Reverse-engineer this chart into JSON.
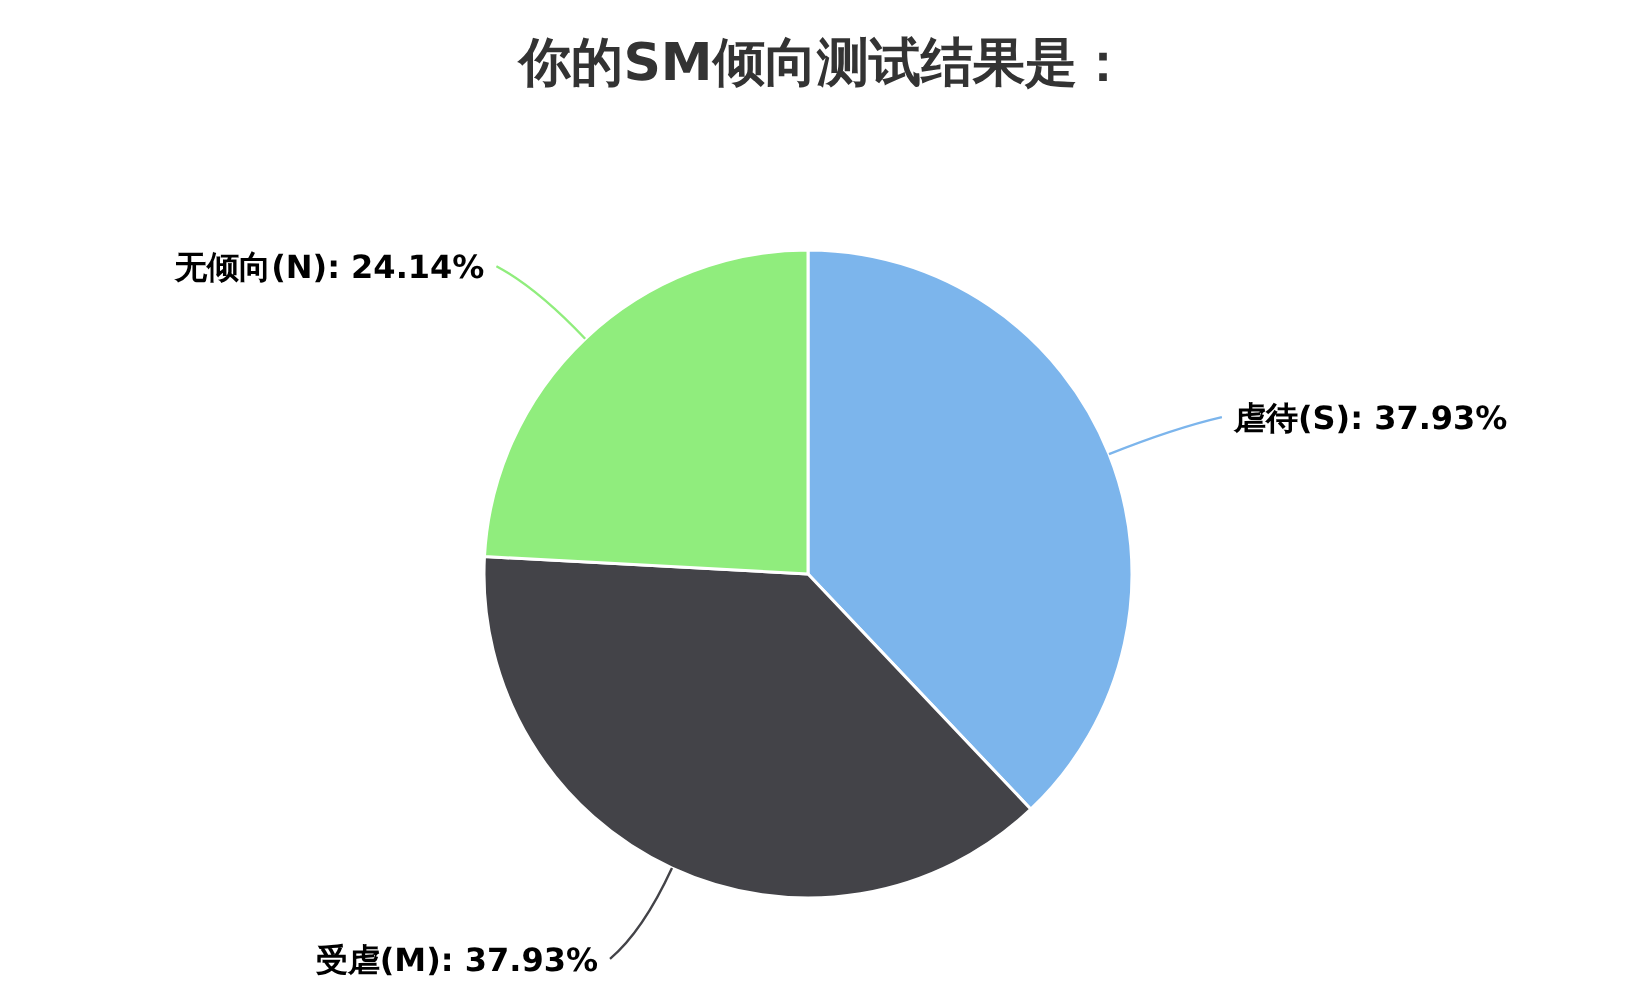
{
  "chart_data": {
    "type": "pie",
    "title": "你的SM倾向测试结果是：",
    "categories": [
      "虐待(S)",
      "受虐(M)",
      "无倾向(N)"
    ],
    "values": [
      37.93,
      37.93,
      24.14
    ],
    "colors": [
      "#7cb5ec",
      "#434348",
      "#90ed7d"
    ],
    "value_labels": [
      ": 37.93%",
      ": 37.93%",
      ": 24.14%"
    ]
  }
}
